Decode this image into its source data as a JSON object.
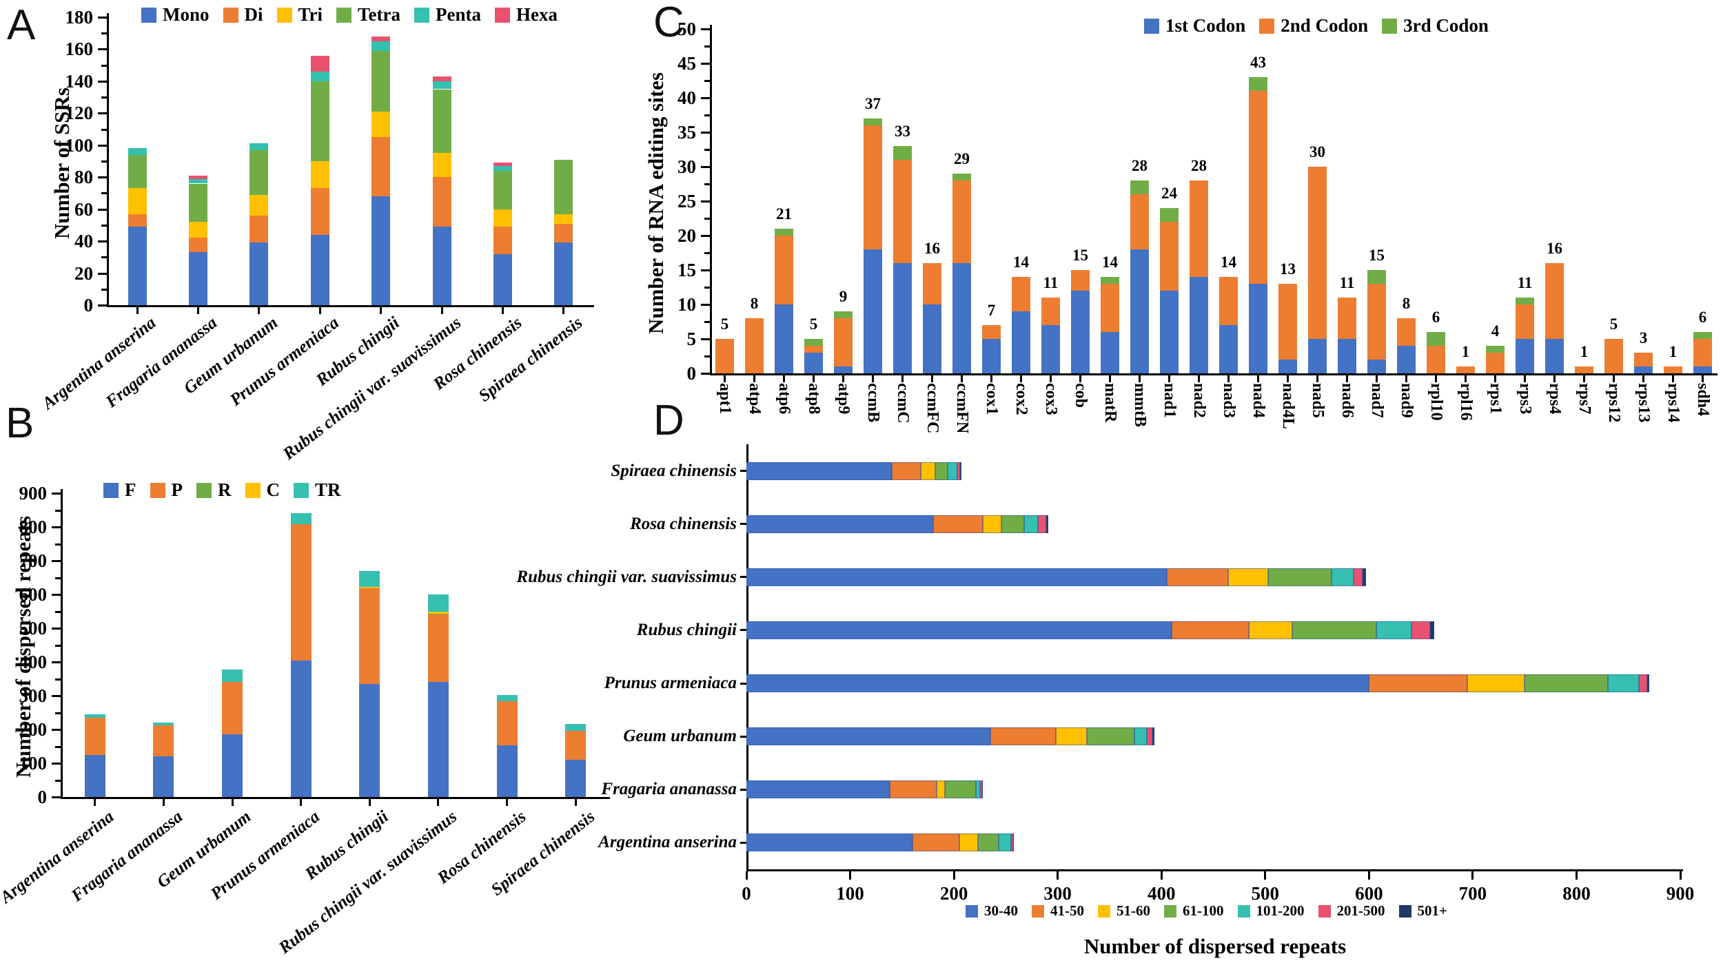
{
  "palette": {
    "blue": "#4472C4",
    "orange": "#ED7D31",
    "yellow": "#FFC000",
    "green": "#70AD47",
    "teal": "#35C0B0",
    "red": "#E8526F",
    "navy": "#203864",
    "axis": "#000000"
  },
  "panel_letters": {
    "a": "A",
    "b": "B",
    "c": "C",
    "d": "D"
  },
  "chart_data": [
    {
      "panel": "A",
      "type": "bar",
      "stacked": true,
      "ylabel": "Number of SSRs",
      "ylim": [
        0,
        180
      ],
      "ystep": 20,
      "yminor": 10,
      "grid": false,
      "legend_position": "top",
      "categories": [
        "Argentina anserina",
        "Fragaria ananassa",
        "Geum urbanum",
        "Prunus armeniaca",
        "Rubus chingii",
        "Rubus chingii var. suavissimus",
        "Rosa chinensis",
        "Spiraea chinensis"
      ],
      "series": [
        {
          "name": "Mono",
          "color": "#4472C4",
          "values": [
            49,
            33,
            39,
            44,
            68,
            49,
            32,
            39
          ]
        },
        {
          "name": "Di",
          "color": "#ED7D31",
          "values": [
            8,
            9,
            17,
            29,
            37,
            31,
            17,
            12
          ]
        },
        {
          "name": "Tri",
          "color": "#FFC000",
          "values": [
            16,
            10,
            13,
            17,
            16,
            15,
            11,
            6
          ]
        },
        {
          "name": "Tetra",
          "color": "#70AD47",
          "values": [
            21,
            24,
            28,
            50,
            38,
            40,
            24,
            34
          ]
        },
        {
          "name": "Penta",
          "color": "#35C0B0",
          "values": [
            4,
            3,
            4,
            6,
            6,
            5,
            3,
            0
          ]
        },
        {
          "name": "Hexa",
          "color": "#E8526F",
          "values": [
            0,
            2,
            0,
            10,
            3,
            3,
            2,
            0
          ]
        }
      ]
    },
    {
      "panel": "B",
      "type": "bar",
      "stacked": true,
      "ylabel": "Number of dispersed repeats",
      "ylim": [
        0,
        900
      ],
      "ystep": 100,
      "yminor": 50,
      "grid": false,
      "legend_position": "top",
      "categories": [
        "Argentina anserina",
        "Fragaria ananassa",
        "Geum urbanum",
        "Prunus armeniaca",
        "Rubus chingii",
        "Rubus chingii var. suavissimus",
        "Rosa chinensis",
        "Spiraea chinensis"
      ],
      "series": [
        {
          "name": "F",
          "color": "#4472C4",
          "values": [
            125,
            120,
            185,
            404,
            335,
            340,
            153,
            110
          ]
        },
        {
          "name": "P",
          "color": "#ED7D31",
          "values": [
            110,
            92,
            155,
            404,
            283,
            200,
            131,
            85
          ]
        },
        {
          "name": "R",
          "color": "#70AD47",
          "values": [
            0,
            0,
            0,
            0,
            0,
            3,
            0,
            0
          ]
        },
        {
          "name": "C",
          "color": "#FFC000",
          "values": [
            0,
            0,
            0,
            0,
            4,
            5,
            0,
            0
          ]
        },
        {
          "name": "TR",
          "color": "#35C0B0",
          "values": [
            10,
            9,
            38,
            33,
            48,
            52,
            18,
            22
          ]
        }
      ]
    },
    {
      "panel": "C",
      "type": "bar",
      "stacked": true,
      "ylabel": "Number of RNA editing sites",
      "ylim": [
        0,
        50
      ],
      "ystep": 5,
      "yminor": 2.5,
      "grid": false,
      "legend_position": "top",
      "value_labels": [
        5,
        8,
        21,
        5,
        9,
        37,
        33,
        16,
        29,
        7,
        14,
        11,
        15,
        14,
        28,
        24,
        28,
        14,
        43,
        13,
        30,
        11,
        15,
        8,
        6,
        1,
        4,
        11,
        16,
        1,
        5,
        3,
        1,
        6
      ],
      "categories": [
        "apt1",
        "atp4",
        "atp6",
        "atp8",
        "atp9",
        "ccmB",
        "ccmC",
        "ccmFC",
        "ccmFN",
        "cox1",
        "cox2",
        "cox3",
        "cob",
        "matR",
        "mmtB",
        "nad1",
        "nad2",
        "nad3",
        "nad4",
        "nad4L",
        "nad5",
        "nad6",
        "nad7",
        "nad9",
        "rpl10",
        "rpl16",
        "rps1",
        "rps3",
        "rps4",
        "rps7",
        "rps12",
        "rps13",
        "rps14",
        "sdh4"
      ],
      "series": [
        {
          "name": "1st Codon",
          "color": "#4472C4",
          "values": [
            0,
            0,
            10,
            3,
            1,
            18,
            16,
            10,
            16,
            5,
            9,
            7,
            12,
            6,
            18,
            12,
            14,
            7,
            13,
            2,
            5,
            5,
            2,
            4,
            0,
            0,
            0,
            5,
            5,
            0,
            0,
            1,
            0,
            1
          ]
        },
        {
          "name": "2nd Codon",
          "color": "#ED7D31",
          "values": [
            5,
            8,
            10,
            1,
            7,
            18,
            15,
            6,
            12,
            2,
            5,
            4,
            3,
            7,
            8,
            10,
            14,
            7,
            28,
            11,
            25,
            6,
            11,
            4,
            4,
            1,
            3,
            5,
            11,
            1,
            5,
            2,
            1,
            4
          ]
        },
        {
          "name": "3rd Codon",
          "color": "#70AD47",
          "values": [
            0,
            0,
            1,
            1,
            1,
            1,
            2,
            0,
            1,
            0,
            0,
            0,
            0,
            1,
            2,
            2,
            0,
            0,
            2,
            0,
            0,
            0,
            2,
            0,
            2,
            0,
            1,
            1,
            0,
            0,
            0,
            0,
            0,
            1
          ]
        }
      ]
    },
    {
      "panel": "D",
      "type": "bar-horizontal",
      "stacked": true,
      "xlabel": "Number of dispersed repeats",
      "xlim": [
        0,
        900
      ],
      "xstep": 100,
      "grid": false,
      "legend_position": "bottom",
      "categories": [
        "Spiraea chinensis",
        "Rosa chinensis",
        "Rubus chingii var. suavissimus",
        "Rubus chingii",
        "Prunus armeniaca",
        "Geum urbanum",
        "Fragaria ananassa",
        "Argentina anserina"
      ],
      "series": [
        {
          "name": "30-40",
          "color": "#4472C4",
          "values": [
            140,
            180,
            405,
            410,
            600,
            235,
            138,
            160
          ]
        },
        {
          "name": "41-50",
          "color": "#ED7D31",
          "values": [
            28,
            48,
            59,
            74,
            95,
            63,
            45,
            45
          ]
        },
        {
          "name": "51-60",
          "color": "#FFC000",
          "values": [
            14,
            18,
            39,
            42,
            55,
            30,
            8,
            18
          ]
        },
        {
          "name": "61-100",
          "color": "#70AD47",
          "values": [
            12,
            22,
            61,
            81,
            80,
            46,
            30,
            20
          ]
        },
        {
          "name": "101-200",
          "color": "#35C0B0",
          "values": [
            9,
            13,
            21,
            34,
            30,
            12,
            4,
            12
          ]
        },
        {
          "name": "201-500",
          "color": "#E8526F",
          "values": [
            3,
            8,
            9,
            18,
            8,
            5,
            2,
            2
          ]
        },
        {
          "name": "501+",
          "color": "#203864",
          "values": [
            1,
            2,
            3,
            4,
            2,
            2,
            1,
            1
          ]
        }
      ]
    }
  ]
}
